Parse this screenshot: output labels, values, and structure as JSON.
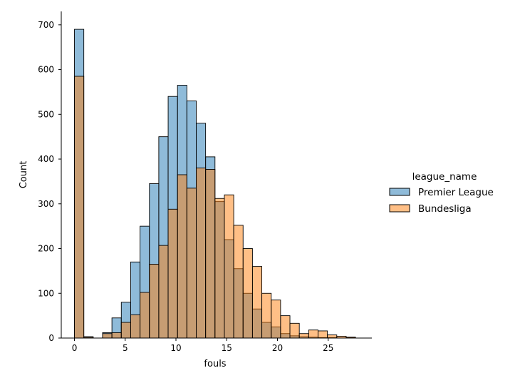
{
  "chart_data": {
    "type": "histogram",
    "xlabel": "fouls",
    "ylabel": "Count",
    "xlim": [
      -1.3,
      29.3
    ],
    "ylim": [
      0,
      730
    ],
    "xticks": [
      0,
      5,
      10,
      15,
      20,
      25
    ],
    "yticks": [
      0,
      100,
      200,
      300,
      400,
      500,
      600,
      700
    ],
    "bin_width": 0.923,
    "bins_start": [
      0,
      0.923,
      1.846,
      2.769,
      3.692,
      4.615,
      5.538,
      6.462,
      7.385,
      8.308,
      9.231,
      10.154,
      11.077,
      12.0,
      12.923,
      13.846,
      14.769,
      15.692,
      16.615,
      17.538,
      18.462,
      19.385,
      20.308,
      21.231,
      22.154,
      23.077,
      24.0,
      24.923,
      25.846,
      26.769
    ],
    "legend": {
      "title": "league_name",
      "placement": "center-right"
    },
    "series": [
      {
        "name": "Premier League",
        "color": "#1f77b4",
        "values": [
          690,
          3,
          0,
          12,
          45,
          80,
          170,
          250,
          345,
          450,
          540,
          565,
          530,
          480,
          405,
          305,
          220,
          155,
          100,
          65,
          35,
          25,
          10,
          5,
          3,
          2,
          1,
          1,
          0,
          1
        ]
      },
      {
        "name": "Bundesliga",
        "color": "#ff7f0e",
        "values": [
          585,
          2,
          0,
          10,
          12,
          35,
          52,
          102,
          165,
          207,
          288,
          365,
          335,
          380,
          377,
          312,
          320,
          252,
          200,
          160,
          100,
          85,
          50,
          33,
          10,
          18,
          16,
          7,
          4,
          2
        ]
      }
    ]
  }
}
